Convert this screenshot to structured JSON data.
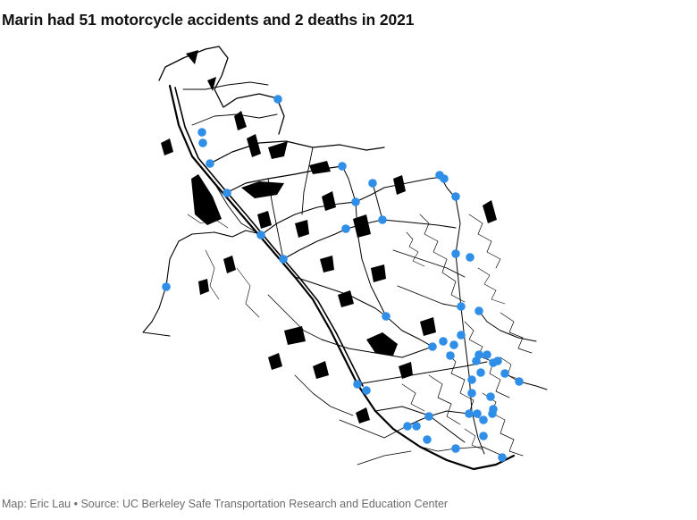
{
  "title": "Marin had 51 motorcycle accidents and 2 deaths in 2021",
  "footer": "Map: Eric Lau • Source: UC Berkeley Safe Transportation Research and Education Center",
  "colors": {
    "accident_dot": "#2e8ee8",
    "roads": "#000000",
    "background": "#ffffff"
  },
  "map": {
    "region": "Marin County road network",
    "accident_count": 51,
    "death_count": 2,
    "year": 2021
  }
}
